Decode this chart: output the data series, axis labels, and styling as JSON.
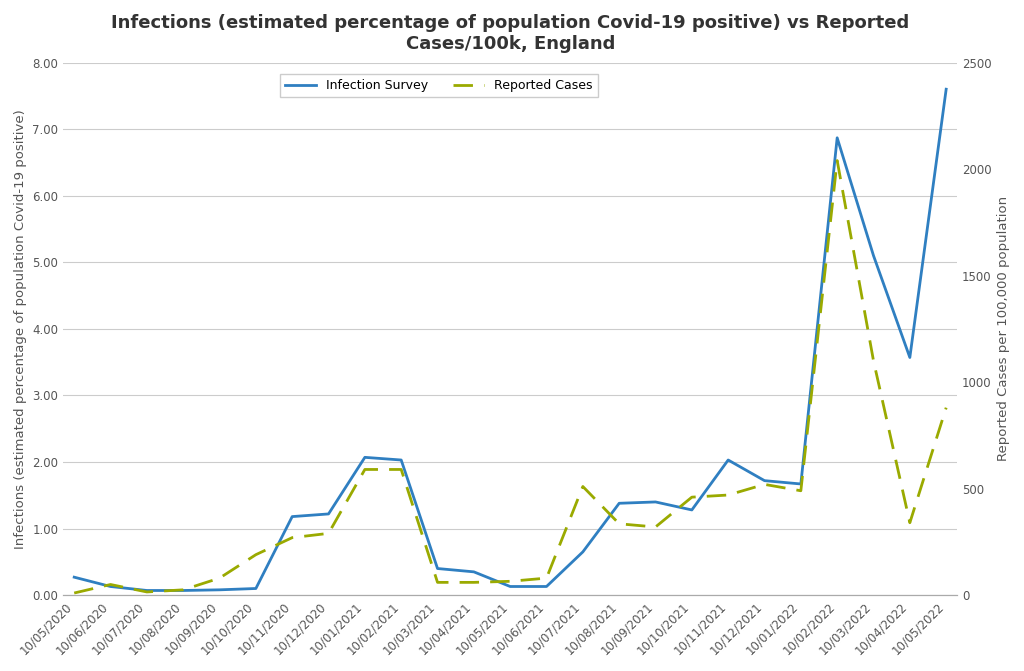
{
  "title": "Infections (estimated percentage of population Covid-19 positive) vs Reported\nCases/100k, England",
  "ylabel_left": "Infections (estimated percentage of population Covid-19 positive)",
  "ylabel_right": "Reported Cases per 100,000 population",
  "left_ylim": [
    0,
    8.0
  ],
  "right_ylim": [
    0,
    2500
  ],
  "left_yticks": [
    0.0,
    1.0,
    2.0,
    3.0,
    4.0,
    5.0,
    6.0,
    7.0,
    8.0
  ],
  "right_yticks": [
    0,
    500,
    1000,
    1500,
    2000,
    2500
  ],
  "x_labels": [
    "10/05/2020",
    "10/06/2020",
    "10/07/2020",
    "10/08/2020",
    "10/09/2020",
    "10/10/2020",
    "10/11/2020",
    "10/12/2020",
    "10/01/2021",
    "10/02/2021",
    "10/03/2021",
    "10/04/2021",
    "10/05/2021",
    "10/06/2021",
    "10/07/2021",
    "10/08/2021",
    "10/09/2021",
    "10/10/2021",
    "10/11/2021",
    "10/12/2021",
    "10/01/2022",
    "10/02/2022",
    "10/03/2022",
    "10/04/2022",
    "10/05/2022"
  ],
  "infection_survey": [
    0.27,
    0.13,
    0.07,
    0.07,
    0.08,
    0.1,
    1.18,
    1.22,
    2.07,
    2.03,
    0.4,
    0.35,
    0.13,
    0.13,
    0.65,
    1.38,
    1.4,
    1.28,
    2.03,
    1.72,
    1.67,
    6.87,
    5.1,
    3.57,
    7.6
  ],
  "reported_cases": [
    10,
    50,
    15,
    25,
    80,
    190,
    270,
    290,
    590,
    590,
    60,
    60,
    65,
    80,
    510,
    335,
    320,
    460,
    470,
    520,
    490,
    2040,
    1100,
    340,
    880
  ],
  "survey_color": "#2f7fc1",
  "cases_color": "#9aaa00",
  "survey_lw": 2.0,
  "cases_lw": 2.0,
  "background_color": "#ffffff",
  "grid_color": "#cccccc",
  "title_fontsize": 13,
  "label_fontsize": 9.5,
  "tick_fontsize": 8.5
}
